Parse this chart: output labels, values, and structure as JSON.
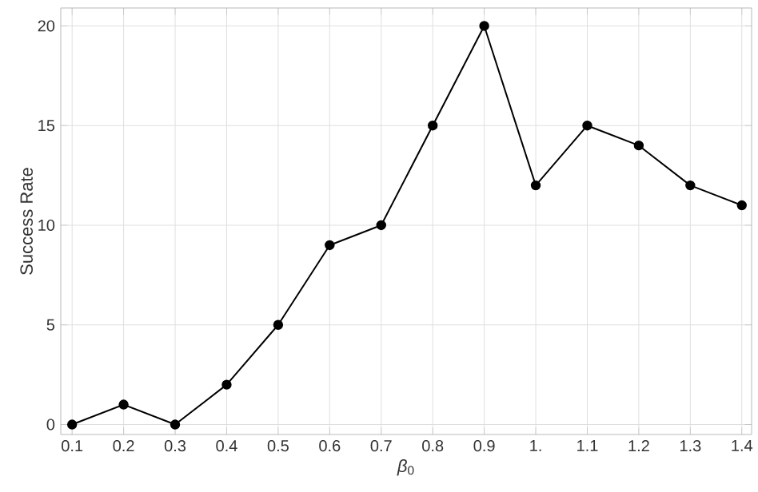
{
  "chart_data": {
    "type": "line",
    "xlabel": "*β*$_{0}$",
    "ylabel": "Success Rate",
    "x": [
      0.1,
      0.2,
      0.3,
      0.4,
      0.5,
      0.6,
      0.7,
      0.8,
      0.9,
      1.0,
      1.1,
      1.2,
      1.3,
      1.4
    ],
    "values": [
      0,
      1,
      0,
      2,
      5,
      9,
      10,
      15,
      20,
      12,
      15,
      14,
      12,
      11
    ],
    "color": "#000000",
    "marker": "circle",
    "line_style": "solid",
    "xlim": [
      0.078,
      1.419
    ],
    "ylim": [
      -0.5,
      20.9
    ],
    "xticks": [
      0.1,
      0.2,
      0.3,
      0.4,
      0.5,
      0.6,
      0.7,
      0.8,
      0.9,
      {
        "value": 1.0,
        "label": "1."
      },
      1.1,
      1.2,
      1.3,
      1.4
    ],
    "yticks": [
      0,
      5,
      10,
      15,
      20
    ],
    "grid": true
  }
}
